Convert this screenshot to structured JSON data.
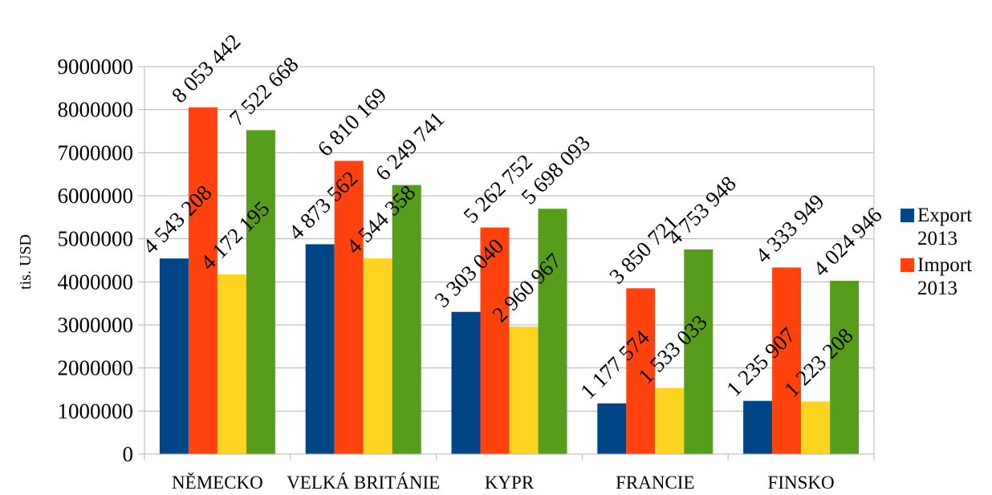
{
  "chart_data": {
    "type": "bar",
    "title": "",
    "xlabel": "",
    "ylabel": "tis. USD",
    "ylim": [
      0,
      9000000
    ],
    "y_ticks": [
      "0",
      "1000000",
      "2000000",
      "3000000",
      "4000000",
      "5000000",
      "6000000",
      "7000000",
      "8000000",
      "9000000"
    ],
    "grid": true,
    "legend_position": "right",
    "categories": [
      "NĚMECKO",
      "VELKÁ BRITÁNIE",
      "KYPR",
      "FRANCIE",
      "FINSKO"
    ],
    "series": [
      {
        "name": "Export 2013",
        "color": "#004586",
        "values": [
          4543208,
          4873562,
          3303040,
          1177574,
          1235907
        ],
        "labels": [
          "4 543 208",
          "4 873 562",
          "3 303 040",
          "1 177 574",
          "1 235 907"
        ]
      },
      {
        "name": "Import 2013",
        "color": "#ff420e",
        "values": [
          8053442,
          6810169,
          5262752,
          3850721,
          4333949
        ],
        "labels": [
          "8 053 442",
          "6 810 169",
          "5 262 752",
          "3 850 721",
          "4 333 949"
        ]
      },
      {
        "color": "#ffd320",
        "values": [
          4172195,
          4544358,
          2960967,
          1533033,
          1223208
        ],
        "labels": [
          "4 172 195",
          "4 544 358",
          "2 960 967",
          "1 533 033",
          "1 223 208"
        ]
      },
      {
        "color": "#579d1c",
        "values": [
          7522668,
          6249741,
          5698093,
          4753948,
          4024946
        ],
        "labels": [
          "7 522 668",
          "6 249 741",
          "5 698 093",
          "4 753 948",
          "4 024 946"
        ]
      }
    ]
  }
}
